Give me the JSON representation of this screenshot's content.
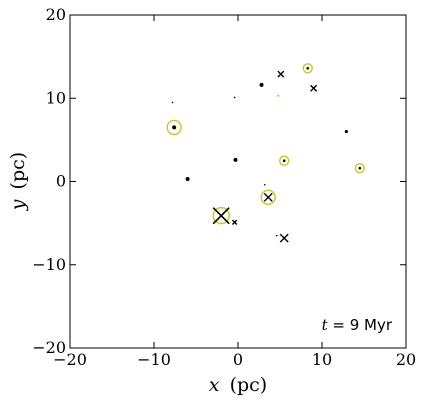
{
  "chart_data": {
    "type": "scatter",
    "title": "",
    "xlabel": {
      "var": "x",
      "unit": "(pc)"
    },
    "ylabel": {
      "var": "y",
      "unit": "(pc)"
    },
    "xlim": [
      -20,
      20
    ],
    "ylim": [
      -20,
      20
    ],
    "xticks": [
      -20,
      -10,
      0,
      10,
      20
    ],
    "yticks": [
      -20,
      -10,
      0,
      10,
      20
    ],
    "xtick_labels": [
      "−20",
      "−10",
      "0",
      "10",
      "20"
    ],
    "ytick_labels": [
      "−20",
      "−10",
      "0",
      "10",
      "20"
    ],
    "grid": false,
    "annotation": {
      "var": "t",
      "rest": " = 9 Myr",
      "placement": "bottom-right"
    },
    "colors": {
      "black": "#000000",
      "yellow": "#c8c81e"
    },
    "series": [
      {
        "marker": "dot",
        "color": "#000000",
        "points": [
          {
            "x": -7.6,
            "y": 6.5,
            "size": 2.0
          },
          {
            "x": -6.0,
            "y": 0.3,
            "size": 2.0
          },
          {
            "x": -0.3,
            "y": 2.6,
            "size": 2.0
          },
          {
            "x": 2.8,
            "y": 11.6,
            "size": 2.0
          },
          {
            "x": 12.9,
            "y": 6.0,
            "size": 1.6
          },
          {
            "x": 5.5,
            "y": 2.5,
            "size": 1.3
          },
          {
            "x": 8.3,
            "y": 13.6,
            "size": 1.3
          },
          {
            "x": 14.5,
            "y": 1.6,
            "size": 1.3
          },
          {
            "x": -0.4,
            "y": 10.1,
            "size": 0.8
          },
          {
            "x": -7.8,
            "y": 9.5,
            "size": 0.8
          },
          {
            "x": 3.2,
            "y": -0.4,
            "size": 0.8
          },
          {
            "x": 4.6,
            "y": -6.5,
            "size": 0.8
          },
          {
            "x": -2.0,
            "y": -4.1,
            "size": 1.2
          }
        ]
      },
      {
        "marker": "cross",
        "color": "#000000",
        "points": [
          {
            "x": -2.0,
            "y": -4.1,
            "size": 8.0
          },
          {
            "x": 3.6,
            "y": -1.9,
            "size": 4.0
          },
          {
            "x": 5.5,
            "y": -6.8,
            "size": 4.0
          },
          {
            "x": 5.1,
            "y": 12.9,
            "size": 3.0
          },
          {
            "x": 9.0,
            "y": 11.2,
            "size": 3.0
          },
          {
            "x": -0.4,
            "y": -4.9,
            "size": 2.2
          }
        ]
      },
      {
        "marker": "ring",
        "color": "#c8c81e",
        "points": [
          {
            "x": -7.6,
            "y": 6.5,
            "size": 7.0
          },
          {
            "x": -2.0,
            "y": -4.1,
            "size": 8.0
          },
          {
            "x": 3.6,
            "y": -1.9,
            "size": 7.0
          },
          {
            "x": 5.5,
            "y": 2.5,
            "size": 4.5
          },
          {
            "x": 8.3,
            "y": 13.6,
            "size": 4.5
          },
          {
            "x": 14.5,
            "y": 1.6,
            "size": 4.5
          }
        ]
      },
      {
        "marker": "dot",
        "color": "#c8c81e",
        "points": [
          {
            "x": 4.8,
            "y": 10.3,
            "size": 1.1
          }
        ]
      }
    ]
  }
}
